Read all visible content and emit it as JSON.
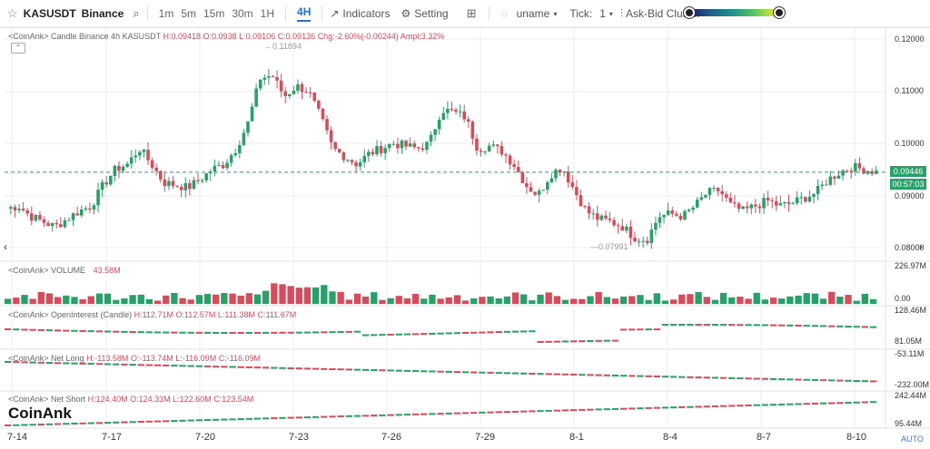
{
  "toolbar": {
    "symbol": "KASUSDT",
    "exchange": "Binance",
    "timeframes": [
      "1m",
      "5m",
      "15m",
      "30m",
      "1H",
      "4H"
    ],
    "active_timeframe": "4H",
    "indicators_label": "Indicators",
    "setting_label": "Setting",
    "user_label": "uname",
    "tick_label": "Tick:",
    "tick_value": "1",
    "cluster_label": "Ask-Bid Cluster",
    "icons": [
      "star-icon",
      "search-icon",
      "indicators-icon",
      "gear-icon",
      "layout-icon",
      "eye-icon",
      "chevron-down-icon"
    ]
  },
  "panes": {
    "candle": {
      "label": "<CoinAnk> Candle  Binance 4h KASUSDT",
      "h": "H:0.09418",
      "o": "O:0.0938",
      "l": "L:0.09106",
      "c": "C:0.09136",
      "chg": "Chg:-2.60%(-0.00244)",
      "ampl": "Ampl:3.32%",
      "high_marker": "0.11894",
      "low_marker": "0.07991",
      "price_ticks": [
        "0.12000",
        "0.11000",
        "0.10000",
        "0.09000",
        "0.08000"
      ],
      "current_price": "0.09446",
      "countdown": "00:57:03"
    },
    "volume": {
      "label": "<CoinAnk> VOLUME",
      "value": "43.58M",
      "ticks": [
        "226.97M",
        "0.00"
      ]
    },
    "oi": {
      "label": "<CoinAnk> OpenInterest (Candle)",
      "h": "H:112.71M",
      "o": "O:112.57M",
      "l": "L:111.38M",
      "c": "C:111.67M",
      "ticks": [
        "128.46M",
        "81.05M"
      ]
    },
    "netlong": {
      "label": "<CoinAnk> Net Long",
      "h": "H:-113.58M",
      "o": "O:-113.74M",
      "l": "L:-116.09M",
      "c": "C:-116.09M",
      "ticks": [
        "-53.11M",
        "-232.00M"
      ]
    },
    "netshort": {
      "label": "<CoinAnk> Net Short",
      "h": "H:124.40M",
      "o": "O:124.33M",
      "l": "L:122.60M",
      "c": "C:123.54M",
      "ticks": [
        "242.44M",
        "95.44M"
      ]
    }
  },
  "brand": "CoinAnk",
  "auto_label": "AUTO",
  "colors": {
    "up": "#26a269",
    "down": "#d94a5a",
    "grid": "#eeeeee",
    "price_line": "#26a269"
  },
  "chart_data": {
    "type": "candlestick",
    "x_ticks": [
      "7-14",
      "7-17",
      "7-20",
      "7-23",
      "7-26",
      "7-29",
      "8-1",
      "8-4",
      "8-7",
      "8-10"
    ],
    "ylim": [
      0.078,
      0.1225
    ],
    "close_path": [
      0.0875,
      0.088,
      0.086,
      0.085,
      0.084,
      0.0855,
      0.087,
      0.088,
      0.092,
      0.095,
      0.096,
      0.099,
      0.096,
      0.0925,
      0.092,
      0.0915,
      0.093,
      0.095,
      0.096,
      0.099,
      0.104,
      0.1125,
      0.113,
      0.109,
      0.111,
      0.11,
      0.105,
      0.099,
      0.0975,
      0.096,
      0.098,
      0.099,
      0.1,
      0.0995,
      0.099,
      0.1,
      0.1065,
      0.106,
      0.105,
      0.099,
      0.0995,
      0.0985,
      0.096,
      0.092,
      0.09,
      0.094,
      0.0955,
      0.091,
      0.087,
      0.0855,
      0.085,
      0.084,
      0.082,
      0.0815,
      0.086,
      0.0865,
      0.086,
      0.088,
      0.0905,
      0.091,
      0.088,
      0.087,
      0.088,
      0.089,
      0.088,
      0.0885,
      0.0895,
      0.0905,
      0.093,
      0.0945,
      0.0955,
      0.095,
      0.0945
    ],
    "volume_ylim": [
      0,
      226.97
    ],
    "oi_range": [
      81.05,
      128.46
    ],
    "netlong_range": [
      -232.0,
      -53.11
    ],
    "netshort_range": [
      95.44,
      242.44
    ]
  }
}
